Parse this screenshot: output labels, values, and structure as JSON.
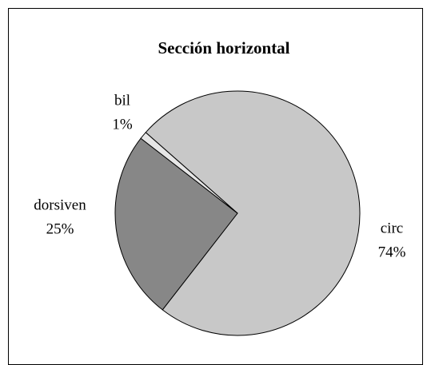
{
  "chart_data": {
    "type": "pie",
    "title": "Sección horizontal",
    "categories": [
      "circ",
      "dorsiven",
      "bil"
    ],
    "values": [
      74,
      25,
      1
    ],
    "value_labels": [
      "74%",
      "25%",
      "1%"
    ],
    "colors": [
      "#c8c8c8",
      "#878787",
      "#e6e6e6"
    ]
  }
}
